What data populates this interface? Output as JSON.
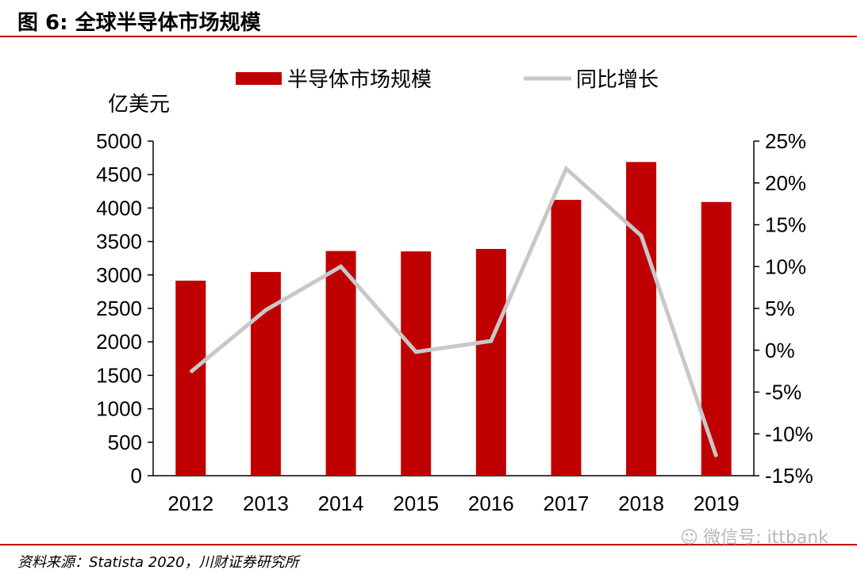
{
  "figure_title": "图 6:  全球半导体市场规模",
  "source": "资料来源：Statista 2020，川财证券研究所",
  "watermark": "微信号: ittbank",
  "chart_data": {
    "type": "bar",
    "categories": [
      "2012",
      "2013",
      "2014",
      "2015",
      "2016",
      "2017",
      "2018",
      "2019"
    ],
    "series": [
      {
        "name": "半导体市场规模",
        "type": "bar",
        "axis": "left",
        "values": [
          2915,
          3044,
          3358,
          3352,
          3389,
          4122,
          4688,
          4090
        ],
        "color": "#c00000"
      },
      {
        "name": "同比增长",
        "type": "line",
        "axis": "right",
        "values": [
          -2.6,
          4.8,
          10.0,
          -0.2,
          1.1,
          21.7,
          13.7,
          -12.7
        ],
        "color": "#c8c8c8"
      }
    ],
    "y_left": {
      "unit_label": "亿美元",
      "ylim": [
        0,
        5000
      ],
      "ticks": [
        "0",
        "500",
        "1000",
        "1500",
        "2000",
        "2500",
        "3000",
        "3500",
        "4000",
        "4500",
        "5000"
      ]
    },
    "y_right": {
      "ylim": [
        -15,
        25
      ],
      "ticks": [
        "-15%",
        "-10%",
        "-5%",
        "0%",
        "5%",
        "10%",
        "15%",
        "20%",
        "25%"
      ]
    },
    "legend": "top-center",
    "grid": false
  }
}
